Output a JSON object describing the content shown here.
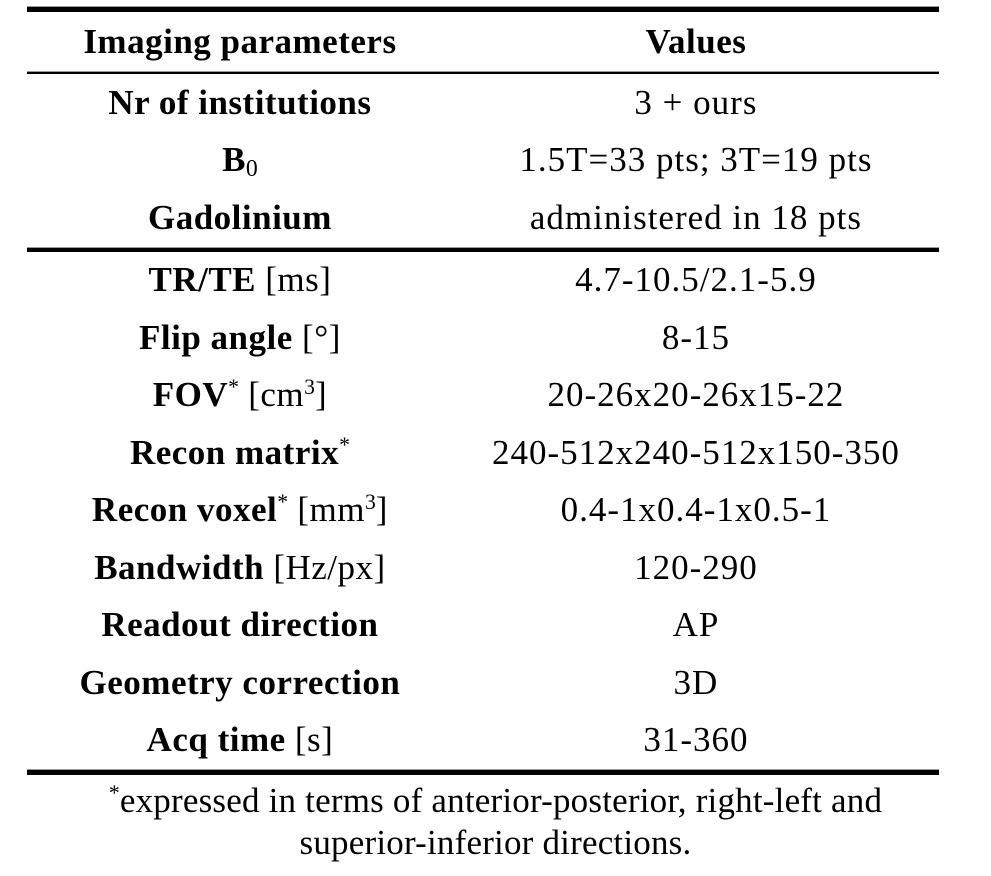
{
  "page": {
    "background": "#ffffff",
    "text_color": "#000000",
    "rule_color": "#000000"
  },
  "table": {
    "header": {
      "col1": "Imaging parameters",
      "col2": "Values"
    },
    "sections": [
      {
        "rows": [
          {
            "label_parts": [
              {
                "style": "bold",
                "text": "Nr of institutions"
              }
            ],
            "value": "3 + ours"
          },
          {
            "label_parts": [
              {
                "style": "bold",
                "text": "B"
              },
              {
                "style": "sub",
                "text": "0"
              }
            ],
            "value": "1.5T=33 pts; 3T=19 pts"
          },
          {
            "label_parts": [
              {
                "style": "bold",
                "text": "Gadolinium"
              }
            ],
            "value": "administered in 18 pts"
          }
        ]
      },
      {
        "rows": [
          {
            "label_parts": [
              {
                "style": "bold",
                "text": "TR/TE"
              },
              {
                "style": "regular",
                "text": " [ms]"
              }
            ],
            "value": "4.7-10.5/2.1-5.9"
          },
          {
            "label_parts": [
              {
                "style": "bold",
                "text": "Flip angle"
              },
              {
                "style": "regular",
                "text": " [°]"
              }
            ],
            "value": "8-15"
          },
          {
            "label_parts": [
              {
                "style": "bold",
                "text": "FOV"
              },
              {
                "style": "sup",
                "text": "*"
              },
              {
                "style": "regular",
                "text": " [cm"
              },
              {
                "style": "sup",
                "text": "3"
              },
              {
                "style": "regular",
                "text": "]"
              }
            ],
            "value": "20-26x20-26x15-22"
          },
          {
            "label_parts": [
              {
                "style": "bold",
                "text": "Recon matrix"
              },
              {
                "style": "sup",
                "text": "*"
              }
            ],
            "value": "240-512x240-512x150-350"
          },
          {
            "label_parts": [
              {
                "style": "bold",
                "text": "Recon voxel"
              },
              {
                "style": "sup",
                "text": "*"
              },
              {
                "style": "regular",
                "text": " [mm"
              },
              {
                "style": "sup",
                "text": "3"
              },
              {
                "style": "regular",
                "text": "]"
              }
            ],
            "value": "0.4-1x0.4-1x0.5-1"
          },
          {
            "label_parts": [
              {
                "style": "bold",
                "text": "Bandwidth"
              },
              {
                "style": "regular",
                "text": " [Hz/px]"
              }
            ],
            "value": "120-290"
          },
          {
            "label_parts": [
              {
                "style": "bold",
                "text": "Readout direction"
              }
            ],
            "value": "AP"
          },
          {
            "label_parts": [
              {
                "style": "bold",
                "text": "Geometry correction"
              }
            ],
            "value": "3D"
          },
          {
            "label_parts": [
              {
                "style": "bold",
                "text": "Acq time"
              },
              {
                "style": "regular",
                "text": " [s]"
              }
            ],
            "value": "31-360"
          }
        ]
      }
    ],
    "footnote": {
      "marker": "*",
      "line1": "expressed in terms of anterior-posterior, right-left and",
      "line2": "superior-inferior directions."
    }
  }
}
